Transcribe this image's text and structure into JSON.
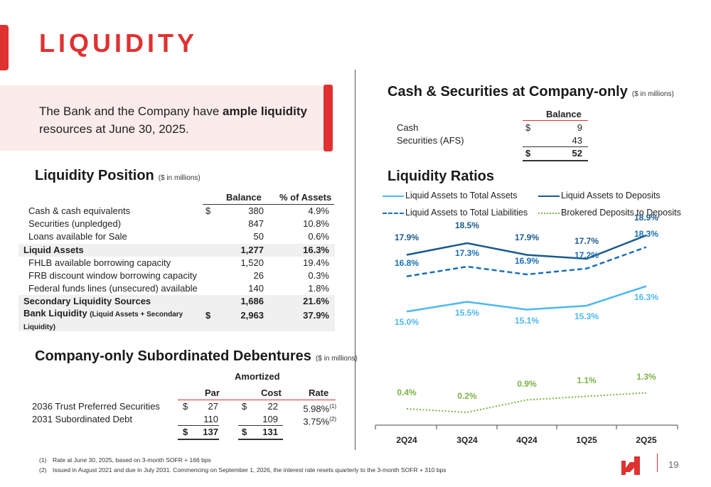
{
  "page": {
    "title": "LIQUIDITY",
    "page_number": "19",
    "callout": {
      "prefix": "The Bank and the Company have ",
      "bold": "ample liquidity",
      "suffix": " resources at June 30, 2025."
    },
    "colors": {
      "accent_red": "#e03131",
      "light_blue": "#4db8f0",
      "dark_blue": "#1a5a8c",
      "green": "#7cb342"
    }
  },
  "liquidity_position": {
    "title": "Liquidity Position",
    "unit": "($ in millions)",
    "headers": {
      "balance": "Balance",
      "pct": "% of Assets"
    },
    "rows": [
      {
        "label": "Cash & cash equivalents",
        "dollar": "$",
        "balance": "380",
        "pct": "4.9%"
      },
      {
        "label": "Securities (unpledged)",
        "dollar": "",
        "balance": "847",
        "pct": "10.8%"
      },
      {
        "label": "Loans available for Sale",
        "dollar": "",
        "balance": "50",
        "pct": "0.6%"
      },
      {
        "label": "Liquid Assets",
        "dollar": "",
        "balance": "1,277",
        "pct": "16.3%"
      },
      {
        "label": "FHLB available borrowing capacity",
        "dollar": "",
        "balance": "1,520",
        "pct": "19.4%"
      },
      {
        "label": "FRB discount window borrowing capacity",
        "dollar": "",
        "balance": "26",
        "pct": "0.3%"
      },
      {
        "label": "Federal funds lines (unsecured) available",
        "dollar": "",
        "balance": "140",
        "pct": "1.8%"
      },
      {
        "label": "Secondary Liquidity Sources",
        "dollar": "",
        "balance": "1,686",
        "pct": "21.6%"
      }
    ],
    "bank_liquidity": {
      "label": "Bank Liquidity",
      "sub": "(Liquid Assets + Secondary",
      "sub2": "Liquidity)",
      "dollar": "$",
      "balance": "2,963",
      "pct": "37.9%"
    }
  },
  "debentures": {
    "title": "Company-only Subordinated Debentures",
    "unit": "($ in millions)",
    "headers": {
      "amortized": "Amortized",
      "par": "Par",
      "cost": "Cost",
      "rate": "Rate"
    },
    "rows": [
      {
        "label": "2036 Trust Preferred Securities",
        "par_dollar": "$",
        "par": "27",
        "cost_dollar": "$",
        "cost": "22",
        "rate": "5.98%",
        "note": "(1)"
      },
      {
        "label": "2031 Subordinated Debt",
        "par_dollar": "",
        "par": "110",
        "cost_dollar": "",
        "cost": "109",
        "rate": "3.75%",
        "note": "(2)"
      }
    ],
    "total": {
      "par_dollar": "$",
      "par": "137",
      "cost_dollar": "$",
      "cost": "131"
    }
  },
  "cash_securities": {
    "title": "Cash & Securities at Company-only",
    "unit": "($ in millions)",
    "header": "Balance",
    "rows": [
      {
        "label": "Cash",
        "dollar": "$",
        "value": "9"
      },
      {
        "label": "Securities (AFS)",
        "dollar": "",
        "value": "43"
      }
    ],
    "total": {
      "dollar": "$",
      "value": "52"
    }
  },
  "footnotes": [
    {
      "num": "(1)",
      "text": "Rate at June 30, 2025, based on 3-month SOFR + 166 bps"
    },
    {
      "num": "(2)",
      "text": "Issued in August 2021 and due in July 2031. Commencing on September  1, 2026, the interest rate resets quarterly to the 3-month SOFR + 310 bps"
    }
  ],
  "chart_data": {
    "type": "line",
    "title": "Liquidity Ratios",
    "x": [
      "2Q24",
      "3Q24",
      "4Q24",
      "1Q25",
      "2Q25"
    ],
    "series": [
      {
        "name": "Liquid Assets to Total Assets",
        "values": [
          15.0,
          15.5,
          15.1,
          15.3,
          16.3
        ],
        "labels": [
          "15.0%",
          "15.5%",
          "15.1%",
          "15.3%",
          "16.3%"
        ],
        "color": "#4db8f0",
        "style": "solid"
      },
      {
        "name": "Liquid Assets to Deposits",
        "values": [
          17.9,
          18.5,
          17.9,
          17.7,
          18.9
        ],
        "labels": [
          "17.9%",
          "18.5%",
          "17.9%",
          "17.7%",
          "18.9%"
        ],
        "color": "#1a5a8c",
        "style": "solid"
      },
      {
        "name": "Liquid Assets to Total Liabilities",
        "values": [
          16.8,
          17.3,
          16.9,
          17.2,
          18.3
        ],
        "labels": [
          "16.8%",
          "17.3%",
          "16.9%",
          "17.2%",
          "18.3%"
        ],
        "color": "#1a6fb8",
        "style": "dashed"
      },
      {
        "name": "Brokered Deposits to Deposits",
        "values": [
          0.4,
          0.2,
          0.9,
          1.1,
          1.3
        ],
        "labels": [
          "0.4%",
          "0.2%",
          "0.9%",
          "1.1%",
          "1.3%"
        ],
        "color": "#7cb342",
        "style": "dotted"
      }
    ],
    "legend_position": "top"
  }
}
